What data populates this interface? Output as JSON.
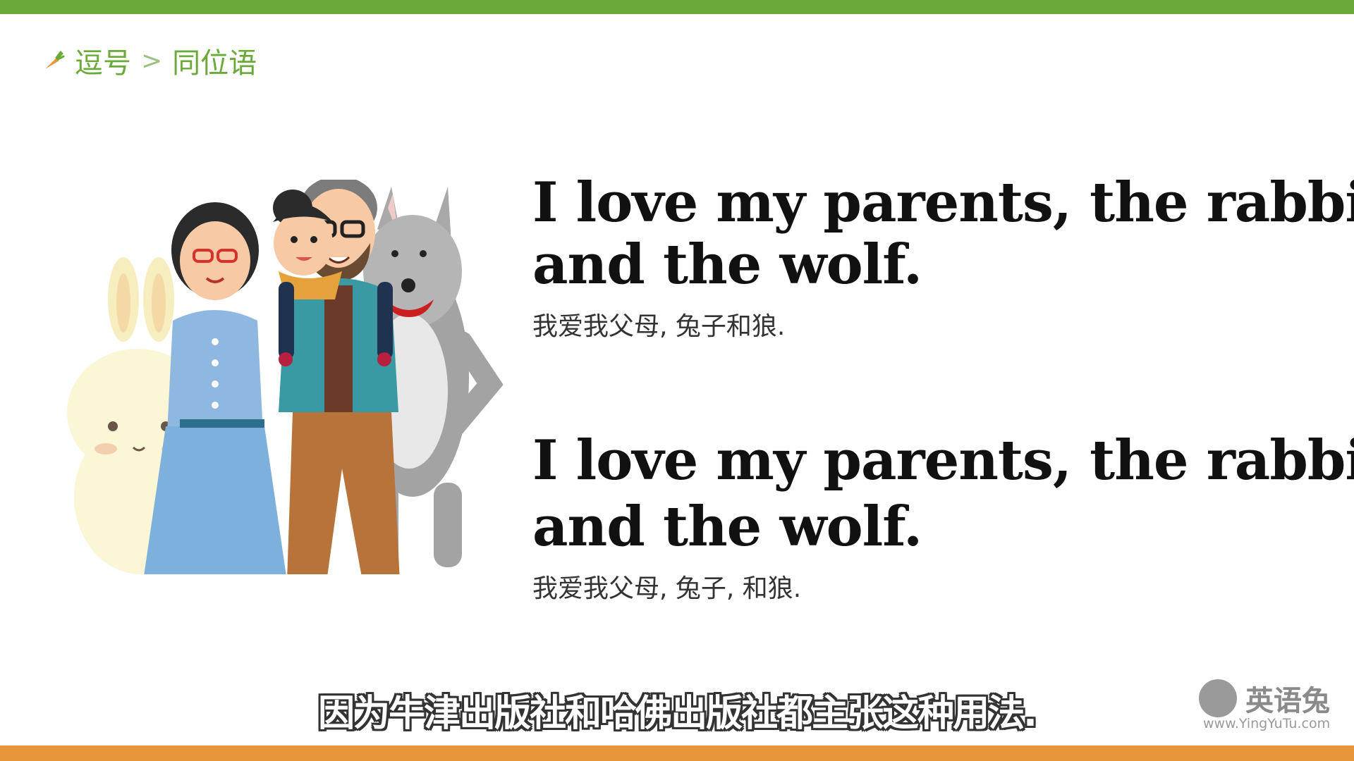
{
  "breadcrumb": {
    "icon": "carrot-icon",
    "section": "逗号",
    "separator": ">",
    "topic": "同位语"
  },
  "examples": [
    {
      "en_line1": "I love my parents, the rabbit",
      "en_line2": "and the wolf.",
      "zh": "我爱我父母, 兔子和狼."
    },
    {
      "en_line1": "I love my parents, the rabbit",
      "highlighted_comma": ",",
      "en_line2": "and the wolf.",
      "zh": "我爱我父母, 兔子, 和狼."
    }
  ],
  "illustration": {
    "characters": [
      "rabbit",
      "mother",
      "father",
      "daughter",
      "wolf"
    ]
  },
  "subtitle": "因为牛津出版社和哈佛出版社都主张这种用法.",
  "watermark": {
    "name": "英语兔",
    "url": "www.YingYuTu.com"
  },
  "colors": {
    "accent_green": "#6aa93a",
    "accent_orange": "#e8963a"
  }
}
